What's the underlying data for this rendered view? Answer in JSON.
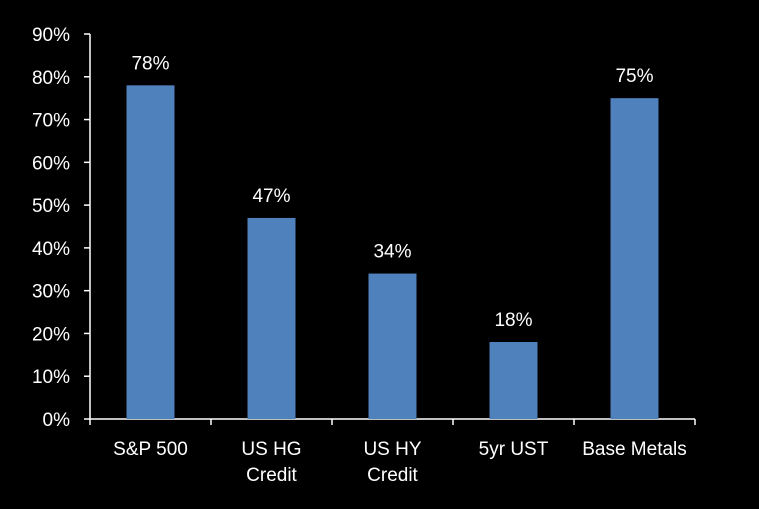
{
  "chart_data": {
    "type": "bar",
    "categories": [
      [
        "S&P 500"
      ],
      [
        "US HG",
        "Credit"
      ],
      [
        "US HY",
        "Credit"
      ],
      [
        "5yr UST"
      ],
      [
        "Base Metals"
      ]
    ],
    "values": [
      78,
      47,
      34,
      18,
      75
    ],
    "data_labels": [
      "78%",
      "47%",
      "34%",
      "18%",
      "75%"
    ],
    "y_ticks": [
      "0%",
      "10%",
      "20%",
      "30%",
      "40%",
      "50%",
      "60%",
      "70%",
      "80%",
      "90%"
    ],
    "ylim": [
      0,
      90
    ],
    "grid": false,
    "colors": {
      "background": "#000000",
      "bar": "#4f81bd",
      "axis": "#ffffff",
      "text": "#ffffff"
    }
  }
}
